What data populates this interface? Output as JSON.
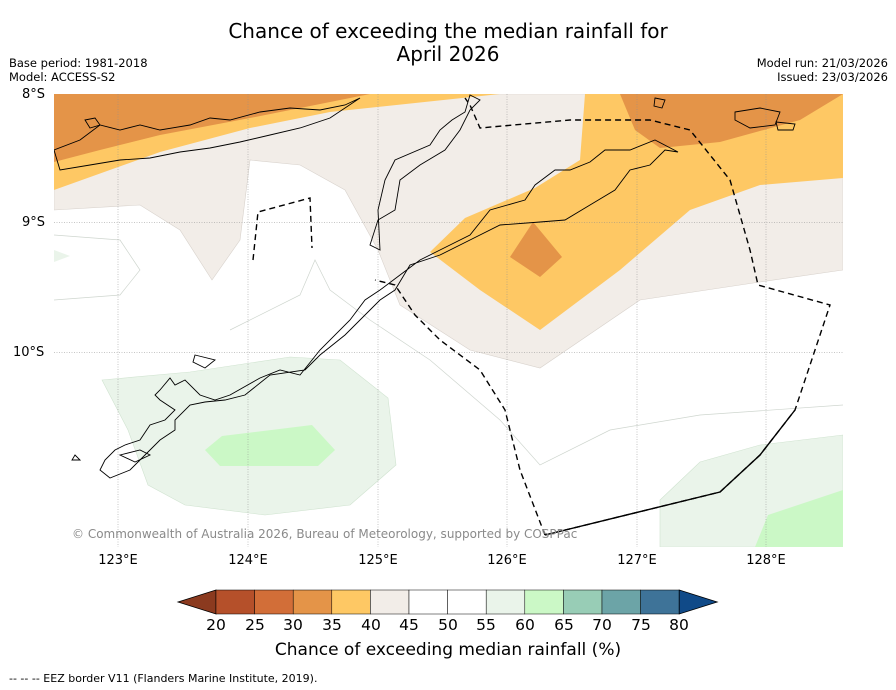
{
  "title_line1": "Chance of exceeding the median rainfall for",
  "title_line2": "April 2026",
  "base_period": "Base period: 1981-2018",
  "model": "Model: ACCESS-S2",
  "model_run": "Model run: 21/03/2026",
  "issued": "Issued: 23/03/2026",
  "lat_labels": [
    "8°S",
    "9°S",
    "10°S"
  ],
  "lon_labels": [
    "123°E",
    "124°E",
    "125°E",
    "126°E",
    "127°E",
    "128°E"
  ],
  "copyright": "© Commonwealth of Australia 2026, Bureau of Meteorology, supported by COSPPac",
  "colorbar": {
    "ticks": [
      "20",
      "25",
      "30",
      "35",
      "40",
      "45",
      "50",
      "55",
      "60",
      "65",
      "70",
      "75",
      "80"
    ],
    "colors": [
      "#8b3a1f",
      "#b5502a",
      "#d26e38",
      "#e49448",
      "#fec864",
      "#f2ede8",
      "#ffffff",
      "#ffffff",
      "#eaf4ea",
      "#cbf8c6",
      "#98cdb6",
      "#6ca4a7",
      "#3e7398",
      "#104a88"
    ],
    "title": "Chance of exceeding median rainfall (%)"
  },
  "legend_note": "--  --  -- EEZ border V11 (Flanders Marine Institute, 2019)."
}
